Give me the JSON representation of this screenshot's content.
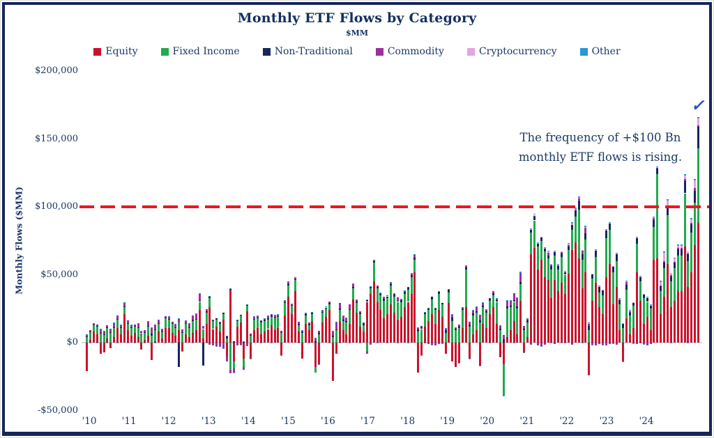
{
  "header": {
    "title": "Monthly ETF Flows by Category",
    "subtitle": "$MM"
  },
  "annotation": {
    "line1": "The frequency of +$100 Bn",
    "line2": "monthly ETF flows is rising.",
    "checkmark": "✓"
  },
  "y_axis": {
    "title": "Monthly Flows ($MM)",
    "ticks": [
      {
        "label": "$200,000",
        "value": 200000
      },
      {
        "label": "$150,000",
        "value": 150000
      },
      {
        "label": "$100,000",
        "value": 100000
      },
      {
        "label": "$50,000",
        "value": 50000
      },
      {
        "label": "$0",
        "value": 0
      },
      {
        "label": "-$50,000",
        "value": -50000
      }
    ]
  },
  "x_axis": {
    "labels": [
      "'10",
      "'11",
      "'12",
      "'13",
      "'14",
      "'15",
      "'16",
      "'17",
      "'18",
      "'19",
      "'20",
      "'21",
      "'22",
      "'23",
      "'24"
    ]
  },
  "chart_data": {
    "type": "bar",
    "subtype": "stacked-monthly",
    "title": "Monthly ETF Flows by Category",
    "units": "$MM",
    "x_range": "Jan 2010 - Dec 2024 (monthly)",
    "ylim": [
      -50000,
      200000
    ],
    "grid": false,
    "legend_position": "top",
    "reference_line": {
      "value": 100000,
      "color": "#f01420",
      "style": "dashed"
    },
    "series": [
      {
        "name": "Equity",
        "color": "#c9132d",
        "values": [
          -21000,
          2000,
          8000,
          6000,
          -8000,
          -7000,
          3000,
          -4000,
          4000,
          11000,
          6000,
          21000,
          9000,
          5000,
          7000,
          4000,
          -5000,
          2000,
          5000,
          -13000,
          1000,
          8000,
          3000,
          11000,
          11000,
          7000,
          5000,
          9000,
          -6000,
          6000,
          4000,
          7000,
          9000,
          24000,
          3000,
          14000,
          26000,
          10000,
          12000,
          8000,
          17000,
          -10000,
          39000,
          -14000,
          12000,
          15000,
          -12000,
          23000,
          -12000,
          9000,
          11000,
          6000,
          8000,
          10000,
          13000,
          9000,
          11000,
          -9000,
          20000,
          34000,
          21000,
          38000,
          8000,
          -12000,
          14000,
          9000,
          16000,
          -18000,
          -16000,
          15000,
          19000,
          24000,
          -28000,
          -8000,
          16000,
          9000,
          6000,
          14000,
          32000,
          22000,
          12000,
          8000,
          30000,
          36000,
          45000,
          30000,
          24000,
          18000,
          21000,
          28000,
          22000,
          17000,
          19000,
          26000,
          30000,
          36000,
          52000,
          -22000,
          -9000,
          12000,
          16000,
          21000,
          14000,
          24000,
          19000,
          -8000,
          29000,
          -14000,
          -18000,
          -15000,
          11000,
          26000,
          -12000,
          6000,
          9000,
          -17000,
          14000,
          11000,
          21000,
          26000,
          14000,
          -11000,
          -16000,
          4000,
          9000,
          16000,
          6000,
          31000,
          -7000,
          4000,
          65000,
          70000,
          54000,
          61000,
          48000,
          46000,
          33000,
          46000,
          38000,
          44000,
          36000,
          51000,
          68000,
          74000,
          62000,
          40000,
          52000,
          -24000,
          31000,
          44000,
          26000,
          21000,
          48000,
          58000,
          28000,
          41000,
          9000,
          -14000,
          18000,
          6000,
          11000,
          52000,
          31000,
          14000,
          19000,
          9000,
          61000,
          62000,
          21000,
          34000,
          58000,
          26000,
          31000,
          38000,
          38000,
          71000,
          41000,
          52000,
          72000,
          88000
        ]
      },
      {
        "name": "Fixed Income",
        "color": "#23a94f",
        "values": [
          4000,
          6000,
          5000,
          6000,
          7000,
          6000,
          8000,
          7000,
          7000,
          6000,
          5000,
          5000,
          5000,
          6000,
          5000,
          7000,
          6000,
          5000,
          7000,
          5000,
          8000,
          6000,
          5000,
          7000,
          6000,
          7000,
          6000,
          6000,
          7000,
          8000,
          7000,
          9000,
          8000,
          6000,
          7000,
          8000,
          7000,
          6000,
          5000,
          6000,
          4000,
          3000,
          -20000,
          -5000,
          4000,
          5000,
          -6000,
          4000,
          5000,
          8000,
          7000,
          9000,
          8000,
          7000,
          6000,
          9000,
          8000,
          7000,
          9000,
          8000,
          6000,
          8000,
          5000,
          7000,
          6000,
          4000,
          5000,
          -4000,
          6000,
          7000,
          6000,
          4000,
          4000,
          9000,
          8000,
          7000,
          9000,
          10000,
          8000,
          7000,
          9000,
          5000,
          -6000,
          4000,
          14000,
          10000,
          11000,
          13000,
          12000,
          14000,
          12000,
          13000,
          11000,
          10000,
          9000,
          12000,
          9000,
          8000,
          10000,
          9000,
          8000,
          11000,
          10000,
          12000,
          9000,
          7000,
          8000,
          16000,
          9000,
          11000,
          13000,
          28000,
          12000,
          14000,
          13000,
          15000,
          12000,
          11000,
          10000,
          9000,
          16000,
          9000,
          -23000,
          21000,
          17000,
          14000,
          19000,
          12000,
          9000,
          11000,
          16000,
          20000,
          17000,
          14000,
          19000,
          16000,
          21000,
          18000,
          16000,
          19000,
          14000,
          17000,
          15000,
          19000,
          36000,
          21000,
          24000,
          9000,
          16000,
          19000,
          11000,
          14000,
          29000,
          25000,
          24000,
          19000,
          19000,
          11000,
          21000,
          14000,
          16000,
          21000,
          14000,
          19000,
          11000,
          16000,
          24000,
          62000,
          17000,
          21000,
          36000,
          19000,
          24000,
          26000,
          26000,
          39000,
          19000,
          29000,
          31000,
          55000
        ]
      },
      {
        "name": "Non-Traditional",
        "color": "#15265b",
        "values": [
          400,
          300,
          400,
          500,
          400,
          300,
          400,
          500,
          400,
          600,
          500,
          700,
          500,
          400,
          300,
          500,
          400,
          600,
          500,
          1500,
          700,
          500,
          400,
          600,
          600,
          500,
          400,
          -18000,
          500,
          600,
          500,
          700,
          600,
          800,
          -17000,
          900,
          800,
          600,
          700,
          900,
          800,
          1700,
          900,
          1100,
          800,
          700,
          900,
          1100,
          700,
          500,
          600,
          800,
          700,
          900,
          800,
          600,
          700,
          900,
          1000,
          1200,
          900,
          700,
          800,
          1000,
          900,
          700,
          800,
          1200,
          1000,
          800,
          900,
          1100,
          1000,
          800,
          900,
          1100,
          1000,
          800,
          900,
          1100,
          1000,
          1200,
          1400,
          1100,
          1100,
          900,
          1000,
          1200,
          1100,
          1300,
          1200,
          1000,
          1100,
          1300,
          1400,
          1600,
          1700,
          1500,
          1300,
          1100,
          1400,
          1600,
          1300,
          1500,
          1200,
          2100,
          1800,
          2600,
          1200,
          1000,
          1100,
          1300,
          1200,
          1400,
          1300,
          1500,
          1400,
          1200,
          1300,
          1500,
          1400,
          1200,
          2600,
          1600,
          1400,
          1200,
          1600,
          1400,
          1200,
          1600,
          2100,
          2600,
          2100,
          2600,
          2300,
          2100,
          2600,
          2800,
          2400,
          2600,
          2200,
          2800,
          3600,
          4100,
          6000,
          4100,
          4600,
          3100,
          3600,
          5100,
          4100,
          3600,
          5600,
          4600,
          4100,
          5100,
          3100,
          2600,
          3600,
          2100,
          2600,
          4100,
          3100,
          2600,
          3100,
          2600,
          5100,
          4100,
          3600,
          4100,
          5100,
          3600,
          4100,
          4600,
          4600,
          9100,
          5100,
          6100,
          9000,
          16000
        ]
      },
      {
        "name": "Commodity",
        "color": "#9d2f9b",
        "values": [
          1200,
          900,
          700,
          1000,
          2800,
          2200,
          1200,
          2600,
          3200,
          2200,
          1600,
          2600,
          2100,
          1400,
          900,
          2400,
          2100,
          1400,
          3100,
          4200,
          3600,
          2100,
          1400,
          900,
          1600,
          1100,
          2100,
          2600,
          2100,
          1600,
          2600,
          3100,
          3600,
          5100,
          2100,
          1600,
          -1600,
          -2100,
          -2600,
          -3100,
          -4100,
          -3600,
          -2600,
          -3100,
          -2100,
          -1600,
          -2100,
          -2600,
          1100,
          1600,
          1100,
          600,
          1100,
          1600,
          1100,
          1600,
          1100,
          600,
          1100,
          1600,
          600,
          1100,
          1600,
          1100,
          600,
          1100,
          600,
          2100,
          1600,
          1100,
          600,
          1100,
          3100,
          5100,
          4100,
          2600,
          2100,
          3600,
          2100,
          1600,
          1100,
          600,
          -2100,
          -1600,
          600,
          1100,
          600,
          1100,
          600,
          1100,
          600,
          2100,
          600,
          1100,
          600,
          1100,
          2100,
          1600,
          1100,
          -600,
          -1100,
          -1600,
          -2100,
          -1100,
          -600,
          1100,
          600,
          2100,
          600,
          1100,
          600,
          1100,
          2100,
          2600,
          3100,
          4100,
          2100,
          1100,
          600,
          1100,
          1100,
          2100,
          3100,
          4100,
          3600,
          5100,
          6100,
          7100,
          2100,
          1100,
          -1600,
          1100,
          -2100,
          -2600,
          -1600,
          2100,
          1100,
          -1100,
          600,
          1100,
          -600,
          1100,
          -1600,
          600,
          2100,
          2600,
          4100,
          2100,
          -1600,
          -2100,
          -1100,
          -1600,
          -2100,
          -1100,
          -600,
          -1600,
          1100,
          600,
          2100,
          1100,
          -600,
          -1100,
          -600,
          -1100,
          -2100,
          -1100,
          1600,
          600,
          600,
          1100,
          1600,
          1100,
          600,
          1100,
          1100,
          1600,
          600,
          1100,
          1600,
          1100
        ]
      },
      {
        "name": "Cryptocurrency",
        "color": "#e8a2dc",
        "values": [
          0,
          0,
          0,
          0,
          0,
          0,
          0,
          0,
          0,
          0,
          0,
          0,
          0,
          0,
          0,
          0,
          0,
          0,
          0,
          0,
          0,
          0,
          0,
          0,
          0,
          0,
          0,
          0,
          0,
          0,
          0,
          0,
          0,
          0,
          0,
          0,
          0,
          0,
          0,
          0,
          0,
          0,
          0,
          0,
          0,
          0,
          0,
          0,
          0,
          0,
          0,
          0,
          0,
          0,
          0,
          0,
          0,
          0,
          0,
          0,
          0,
          0,
          0,
          0,
          0,
          0,
          0,
          0,
          0,
          0,
          0,
          0,
          0,
          0,
          0,
          0,
          0,
          0,
          0,
          0,
          0,
          0,
          0,
          0,
          0,
          0,
          0,
          0,
          0,
          0,
          0,
          0,
          0,
          0,
          0,
          0,
          0,
          0,
          0,
          0,
          0,
          0,
          0,
          0,
          0,
          0,
          0,
          0,
          0,
          0,
          0,
          0,
          0,
          0,
          0,
          0,
          0,
          0,
          0,
          0,
          0,
          0,
          0,
          0,
          0,
          0,
          0,
          0,
          0,
          0,
          300,
          400,
          300,
          600,
          400,
          800,
          500,
          300,
          400,
          600,
          300,
          900,
          1200,
          800,
          800,
          400,
          600,
          300,
          400,
          300,
          400,
          300,
          500,
          400,
          300,
          400,
          300,
          200,
          400,
          300,
          200,
          300,
          400,
          300,
          200,
          300,
          600,
          500,
          2600,
          6100,
          4100,
          1600,
          2100,
          1800,
          1800,
          2600,
          1600,
          2600,
          6100,
          5000
        ]
      },
      {
        "name": "Other",
        "color": "#2899d5",
        "values": [
          300,
          -200,
          300,
          -200,
          300,
          300,
          -200,
          300,
          200,
          -300,
          200,
          400,
          -200,
          300,
          -200,
          300,
          200,
          -300,
          200,
          400,
          -300,
          200,
          300,
          -200,
          300,
          -200,
          300,
          400,
          -300,
          200,
          300,
          -200,
          300,
          400,
          300,
          -200,
          300,
          200,
          -300,
          400,
          -300,
          200,
          300,
          -400,
          200,
          -300,
          200,
          300,
          -200,
          300,
          200,
          -300,
          400,
          300,
          -200,
          300,
          400,
          -300,
          400,
          500,
          300,
          400,
          -300,
          200,
          300,
          -400,
          300,
          400,
          -300,
          400,
          300,
          -400,
          400,
          300,
          -400,
          300,
          400,
          -300,
          400,
          300,
          -400,
          300,
          400,
          300,
          400,
          -300,
          400,
          300,
          -400,
          300,
          400,
          -300,
          400,
          300,
          -400,
          500,
          500,
          400,
          -300,
          400,
          300,
          -400,
          300,
          400,
          -300,
          400,
          300,
          400,
          400,
          -300,
          400,
          300,
          -400,
          300,
          400,
          -300,
          400,
          300,
          -400,
          500,
          400,
          500,
          -600,
          400,
          500,
          -400,
          500,
          600,
          -400,
          500,
          600,
          700,
          500,
          -600,
          700,
          500,
          -600,
          700,
          500,
          -600,
          500,
          700,
          800,
          900,
          600,
          -500,
          700,
          500,
          -600,
          500,
          600,
          -500,
          700,
          600,
          -500,
          600,
          500,
          -400,
          600,
          400,
          -500,
          600,
          500,
          -400,
          500,
          400,
          700,
          600,
          600,
          700,
          800,
          -600,
          700,
          600,
          600,
          900,
          -600,
          800,
          900,
          1000
        ]
      }
    ]
  }
}
